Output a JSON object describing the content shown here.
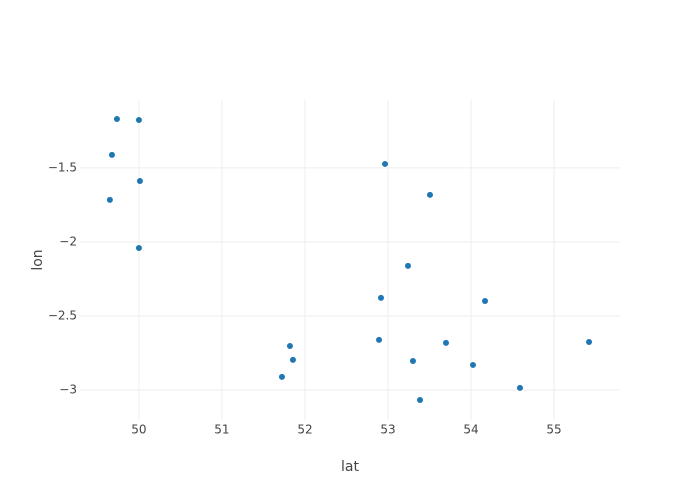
{
  "chart_data": {
    "type": "scatter",
    "x_label": "lat",
    "y_label": "lon",
    "color": "#1f77b4",
    "grid": true,
    "x": [
      49.735,
      50.0,
      49.675,
      50.012,
      49.65,
      50.0,
      52.964,
      53.506,
      53.241,
      52.916,
      54.169,
      52.892,
      51.819,
      51.855,
      51.723,
      53.301,
      53.699,
      54.024,
      54.59,
      53.386,
      55.422
    ],
    "values": [
      -1.169,
      -1.176,
      -1.412,
      -1.588,
      -1.716,
      -2.041,
      -1.473,
      -1.682,
      -2.162,
      -2.378,
      -2.399,
      -2.662,
      -2.703,
      -2.797,
      -2.912,
      -2.804,
      -2.682,
      -2.831,
      -2.986,
      -3.068,
      -2.676
    ],
    "xlim": [
      49.29,
      55.795
    ],
    "ylim": [
      -3.203,
      -1.041
    ],
    "xticks": [
      50,
      51,
      52,
      53,
      54,
      55
    ],
    "yticks": [
      {
        "value": -3,
        "label": "−3"
      },
      {
        "value": -2.5,
        "label": "−2.5"
      },
      {
        "value": -2,
        "label": "−2"
      },
      {
        "value": -1.5,
        "label": "−1.5"
      }
    ]
  }
}
